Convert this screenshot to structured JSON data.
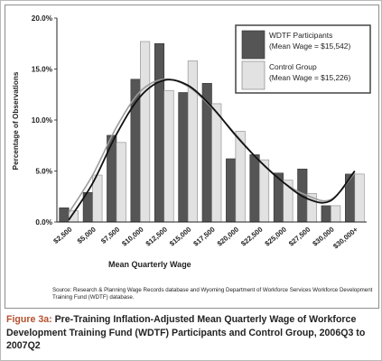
{
  "chart_data": {
    "type": "bar",
    "ylabel": "Percentage of Observations",
    "xlabel": "Mean Quarterly Wage",
    "ylim": [
      0,
      20
    ],
    "yticks": [
      "0.0%",
      "5.0%",
      "10.0%",
      "15.0%",
      "20.0%"
    ],
    "ytick_values": [
      0,
      5,
      10,
      15,
      20
    ],
    "categories": [
      "$2,500",
      "$5,000",
      "$7,500",
      "$10,000",
      "$12,500",
      "$15,000",
      "$17,500",
      "$20,000",
      "$22,500",
      "$25,000",
      "$27,500",
      "$30,000",
      "$30,000+"
    ],
    "series": [
      {
        "name": "WDTF Participants",
        "sublabel": "(Mean Wage = $15,542)",
        "color": "#555555",
        "values": [
          1.4,
          2.9,
          8.5,
          14.0,
          17.5,
          12.7,
          13.6,
          6.2,
          6.6,
          4.8,
          5.2,
          1.6,
          4.7
        ],
        "trend": [
          0.2,
          3.8,
          8.6,
          12.3,
          13.9,
          13.4,
          11.3,
          8.5,
          6.0,
          3.9,
          2.3,
          2.1,
          5.0
        ]
      },
      {
        "name": "Control Group",
        "sublabel": "(Mean Wage = $15,226)",
        "color": "#e2e2e2",
        "values": [
          1.1,
          4.6,
          7.8,
          17.7,
          12.9,
          15.8,
          11.6,
          8.9,
          6.1,
          4.1,
          2.8,
          1.6,
          4.7
        ],
        "trend": [
          0.9,
          4.6,
          9.3,
          12.8,
          14.0,
          13.3,
          11.2,
          8.6,
          6.0,
          3.9,
          2.6,
          2.2,
          4.8
        ]
      }
    ],
    "trendline_colors": [
      "#111111",
      "#9c9c9c"
    ],
    "legend_position": "top-right",
    "grid": false
  },
  "source": "Source: Research & Planning Wage Records database and Wyoming Department of Workforce Services Workforce Development Training Fund (WDTF) database.",
  "caption": {
    "lead": "Figure 3a:",
    "text": "Pre-Training Inflation-Adjusted Mean Quarterly Wage of Workforce Development Training Fund (WDTF) Participants and Control Group, 2006Q3 to 2007Q2"
  }
}
